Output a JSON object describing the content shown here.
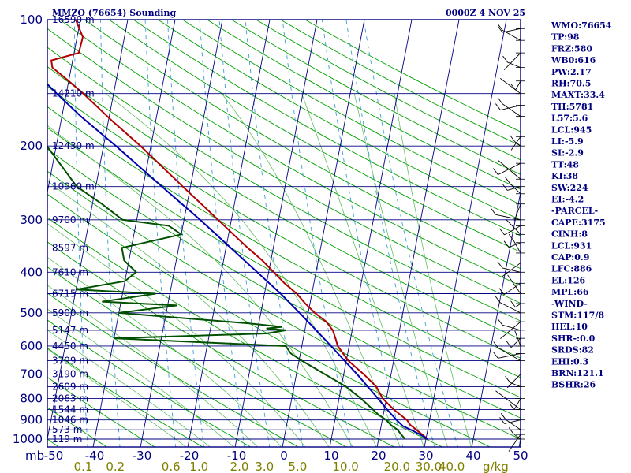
{
  "header": {
    "station": "MMZO (76654) Sounding",
    "datetime": "0000Z  4 NOV 25"
  },
  "indices": [
    "WMO:76654",
    "TP:98",
    "FRZ:580",
    "WB0:616",
    "PW:2.17",
    "RH:70.5",
    "MAXT:33.4",
    "TH:5781",
    "L57:5.6",
    "LCL:945",
    "LI:-5.9",
    "SI:-2.9",
    "TT:48",
    "KI:38",
    "SW:224",
    "EI:-4.2",
    "-PARCEL-",
    "CAPE:3175",
    "CINH:8",
    "LCL:931",
    "CAP:0.9",
    "LFC:886",
    "EL:126",
    "MPL:66",
    "-WIND-",
    "STM:117/8",
    "HEL:10",
    "SHR-:0.0",
    "SRDS:82",
    "EHI:0.3",
    "BRN:121.1",
    "BSHR:26"
  ],
  "colors": {
    "isobar": "#000080",
    "isotherm": "#000080",
    "dry_adiabat": "#00a000",
    "moist_adiabat": "#60c060",
    "mixing_ratio": "#3aa0d0",
    "temperature": "#b00000",
    "dewpoint": "#005000",
    "parcel": "#0000b0",
    "wind": "#000000"
  },
  "chart_data": {
    "type": "line",
    "title": "MMZO (76654) Sounding",
    "x_unit": "°C",
    "y_unit": "mb",
    "y_scale": "log",
    "ylim": [
      1000,
      100
    ],
    "xlim_bottom": [
      -50,
      50
    ],
    "pressure_ticks": [
      100,
      200,
      300,
      400,
      500,
      600,
      700,
      800,
      900,
      1000
    ],
    "temperature_ticks": [
      -50,
      -40,
      -30,
      -20,
      -10,
      0,
      10,
      20,
      30,
      40,
      50
    ],
    "x_axis_label": "mb",
    "mixing_ratio_label": "g/kg",
    "mixing_ratio_ticks": [
      {
        "label": "0.1",
        "g_per_kg": 0.1
      },
      {
        "label": "0.2",
        "g_per_kg": 0.2
      },
      {
        "label": "0.6",
        "g_per_kg": 0.6
      },
      {
        "label": "1.0",
        "g_per_kg": 1.0
      },
      {
        "label": "2.0",
        "g_per_kg": 2.0
      },
      {
        "label": "3.0",
        "g_per_kg": 3.0
      },
      {
        "label": "5.0",
        "g_per_kg": 5.0
      },
      {
        "label": "10.0",
        "g_per_kg": 10.0
      },
      {
        "label": "20.0",
        "g_per_kg": 20.0
      },
      {
        "label": "30.0",
        "g_per_kg": 30.0
      },
      {
        "label": "40.0",
        "g_per_kg": 40.0
      }
    ],
    "height_labels": [
      {
        "p": 100,
        "label": "16590 m"
      },
      {
        "p": 150,
        "label": "14210 m"
      },
      {
        "p": 200,
        "label": "12430 m"
      },
      {
        "p": 250,
        "label": "10960 m"
      },
      {
        "p": 300,
        "label": "9700 m"
      },
      {
        "p": 350,
        "label": "8597 m"
      },
      {
        "p": 400,
        "label": "7610 m"
      },
      {
        "p": 450,
        "label": "6715 m"
      },
      {
        "p": 500,
        "label": "5900 m"
      },
      {
        "p": 550,
        "label": "5147 m"
      },
      {
        "p": 600,
        "label": "4450 m"
      },
      {
        "p": 650,
        "label": "3799 m"
      },
      {
        "p": 700,
        "label": "3190 m"
      },
      {
        "p": 750,
        "label": "2609 m"
      },
      {
        "p": 800,
        "label": "2063 m"
      },
      {
        "p": 850,
        "label": "1544 m"
      },
      {
        "p": 900,
        "label": "1046 m"
      },
      {
        "p": 950,
        "label": "573 m"
      },
      {
        "p": 1000,
        "label": "119 m"
      }
    ],
    "series": [
      {
        "key": "temperature",
        "points": [
          [
            1000,
            30.4
          ],
          [
            975,
            29.0
          ],
          [
            950,
            27.6
          ],
          [
            925,
            26.1
          ],
          [
            900,
            25.2
          ],
          [
            875,
            23.6
          ],
          [
            850,
            22.0
          ],
          [
            800,
            19.2
          ],
          [
            750,
            17.4
          ],
          [
            700,
            14.2
          ],
          [
            650,
            10.4
          ],
          [
            600,
            7.6
          ],
          [
            575,
            6.8
          ],
          [
            550,
            5.9
          ],
          [
            525,
            4.2
          ],
          [
            500,
            1.4
          ],
          [
            475,
            -1.0
          ],
          [
            450,
            -3.2
          ],
          [
            425,
            -6.2
          ],
          [
            400,
            -8.9
          ],
          [
            375,
            -11.8
          ],
          [
            350,
            -15.4
          ],
          [
            325,
            -19.0
          ],
          [
            300,
            -22.8
          ],
          [
            275,
            -27.0
          ],
          [
            250,
            -31.6
          ],
          [
            225,
            -36.6
          ],
          [
            200,
            -42.2
          ],
          [
            175,
            -49.0
          ],
          [
            150,
            -56.4
          ],
          [
            140,
            -60.0
          ],
          [
            130,
            -64.0
          ],
          [
            125,
            -64.5
          ],
          [
            120,
            -59.0
          ],
          [
            110,
            -58.8
          ],
          [
            100,
            -61.0
          ]
        ]
      },
      {
        "key": "dewpoint",
        "points": [
          [
            1000,
            25.6
          ],
          [
            975,
            24.6
          ],
          [
            950,
            23.6
          ],
          [
            925,
            22.0
          ],
          [
            900,
            20.8
          ],
          [
            875,
            19.0
          ],
          [
            850,
            17.6
          ],
          [
            800,
            14.6
          ],
          [
            750,
            11.0
          ],
          [
            700,
            6.0
          ],
          [
            650,
            0.6
          ],
          [
            625,
            -2.0
          ],
          [
            600,
            -3.4
          ],
          [
            575,
            -40.0
          ],
          [
            560,
            -8.0
          ],
          [
            550,
            -4.0
          ],
          [
            545,
            -8.2
          ],
          [
            540,
            -5.0
          ],
          [
            530,
            -12.0
          ],
          [
            500,
            -40.0
          ],
          [
            480,
            -28.0
          ],
          [
            470,
            -44.0
          ],
          [
            450,
            -33.0
          ],
          [
            440,
            -50.0
          ],
          [
            420,
            -40.0
          ],
          [
            400,
            -38.0
          ],
          [
            375,
            -41.0
          ],
          [
            350,
            -42.0
          ],
          [
            325,
            -30.0
          ],
          [
            310,
            -33.0
          ],
          [
            300,
            -43.0
          ],
          [
            275,
            -48.0
          ],
          [
            250,
            -54.0
          ],
          [
            200,
            -62.0
          ],
          [
            175,
            -65.0
          ],
          [
            150,
            -67.0
          ],
          [
            125,
            -70.0
          ],
          [
            110,
            -73.0
          ],
          [
            100,
            -75.0
          ]
        ]
      },
      {
        "key": "parcel",
        "points": [
          [
            1000,
            30.4
          ],
          [
            975,
            28.6
          ],
          [
            950,
            26.4
          ],
          [
            931,
            24.6
          ],
          [
            900,
            23.0
          ],
          [
            850,
            20.6
          ],
          [
            800,
            18.2
          ],
          [
            750,
            15.6
          ],
          [
            700,
            12.8
          ],
          [
            650,
            9.6
          ],
          [
            600,
            6.2
          ],
          [
            550,
            2.4
          ],
          [
            500,
            -1.8
          ],
          [
            450,
            -6.6
          ],
          [
            400,
            -12.4
          ],
          [
            350,
            -19.0
          ],
          [
            300,
            -26.6
          ],
          [
            250,
            -36.0
          ],
          [
            200,
            -47.4
          ],
          [
            170,
            -56.0
          ],
          [
            150,
            -62.0
          ],
          [
            126,
            -70.0
          ],
          [
            110,
            -76.0
          ]
        ]
      }
    ]
  }
}
